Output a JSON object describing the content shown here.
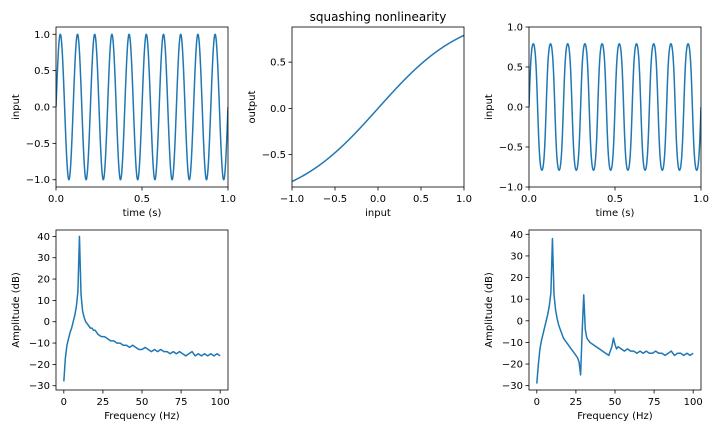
{
  "chart_data": [
    {
      "id": "sine-input",
      "type": "line",
      "title": "",
      "xlabel": "time (s)",
      "ylabel": "input",
      "xlim": [
        0,
        1
      ],
      "ylim": [
        -1.1,
        1.1
      ],
      "xticks": [
        0,
        0.5,
        1
      ],
      "xticklabels": [
        "0.0",
        "0.5",
        "1.0"
      ],
      "yticks": [
        -1,
        -0.5,
        0,
        0.5,
        1
      ],
      "yticklabels": [
        "−1.0",
        "−0.5",
        "0.0",
        "0.5",
        "1.0"
      ],
      "grid": false,
      "color": "#1f77b4",
      "series": [
        {
          "function": "sin",
          "frequency_hz": 10,
          "amplitude": 1,
          "x_range": [
            0,
            1
          ]
        }
      ]
    },
    {
      "id": "squashing-nonlinearity",
      "type": "line",
      "title": "squashing nonlinearity",
      "xlabel": "input",
      "ylabel": "output",
      "xlim": [
        -1,
        1
      ],
      "ylim": [
        -0.85,
        0.88
      ],
      "xticks": [
        -1,
        -0.5,
        0,
        0.5,
        1
      ],
      "xticklabels": [
        "−1.0",
        "−0.5",
        "0.0",
        "0.5",
        "1.0"
      ],
      "yticks": [
        -0.5,
        0,
        0.5
      ],
      "yticklabels": [
        "−0.5",
        "0.0",
        "0.5"
      ],
      "grid": false,
      "color": "#1f77b4",
      "series": [
        {
          "function": "tanh",
          "x_range": [
            -1,
            1
          ],
          "endpoints": [
            [
              -1,
              -0.79
            ],
            [
              1,
              0.79
            ]
          ]
        }
      ]
    },
    {
      "id": "sine-squashed",
      "type": "line",
      "title": "",
      "xlabel": "time (s)",
      "ylabel": "input",
      "xlim": [
        0,
        1
      ],
      "ylim": [
        -1,
        1
      ],
      "xticks": [
        0,
        0.5,
        1
      ],
      "xticklabels": [
        "0.0",
        "0.5",
        "1.0"
      ],
      "yticks": [
        -1,
        -0.5,
        0,
        0.5,
        1
      ],
      "yticklabels": [
        "−1.0",
        "−0.5",
        "0.0",
        "0.5",
        "1.0"
      ],
      "grid": false,
      "color": "#1f77b4",
      "series": [
        {
          "function": "tanh(sin)",
          "frequency_hz": 10,
          "peak": 0.79,
          "x_range": [
            0,
            1
          ]
        }
      ]
    },
    {
      "id": "spectrum-input",
      "type": "line",
      "title": "",
      "xlabel": "Frequency (Hz)",
      "ylabel": "Amplitude (dB)",
      "xlim": [
        -5,
        105
      ],
      "ylim": [
        -32,
        43
      ],
      "xticks": [
        0,
        25,
        50,
        75,
        100
      ],
      "xticklabels": [
        "0",
        "25",
        "50",
        "75",
        "100"
      ],
      "yticks": [
        -30,
        -20,
        -10,
        0,
        10,
        20,
        30,
        40
      ],
      "yticklabels": [
        "−30",
        "−20",
        "−10",
        "0",
        "10",
        "20",
        "30",
        "40"
      ],
      "grid": false,
      "color": "#1f77b4",
      "series": [
        {
          "x": [
            0,
            1,
            2,
            3,
            4,
            5,
            6,
            7,
            8,
            9,
            10,
            11,
            12,
            13,
            14,
            15,
            16,
            17,
            18,
            19,
            20,
            22,
            24,
            26,
            28,
            30,
            32,
            34,
            36,
            38,
            40,
            42,
            44,
            46,
            48,
            50,
            52,
            54,
            56,
            58,
            60,
            62,
            64,
            66,
            68,
            70,
            72,
            74,
            76,
            78,
            80,
            82,
            84,
            86,
            88,
            90,
            92,
            94,
            96,
            98,
            100
          ],
          "y": [
            -28,
            -17,
            -11,
            -8,
            -5,
            -3,
            0,
            3,
            7,
            14,
            40,
            13,
            5,
            2,
            0,
            -1,
            -2,
            -3,
            -3,
            -4,
            -4,
            -6,
            -7,
            -7,
            -8,
            -9,
            -9,
            -10,
            -10,
            -11,
            -11,
            -12,
            -11,
            -12,
            -13,
            -13,
            -12,
            -13,
            -14,
            -13,
            -14,
            -13,
            -14,
            -14,
            -15,
            -14,
            -15,
            -14,
            -15,
            -16,
            -15,
            -14,
            -16,
            -15,
            -16,
            -15,
            -16,
            -15,
            -16,
            -15,
            -16
          ]
        }
      ]
    },
    {
      "id": "spectrum-squashed",
      "type": "line",
      "title": "",
      "xlabel": "Frequency (Hz)",
      "ylabel": "Amplitude (dB)",
      "xlim": [
        -5,
        105
      ],
      "ylim": [
        -32,
        42
      ],
      "xticks": [
        0,
        25,
        50,
        75,
        100
      ],
      "xticklabels": [
        "0",
        "25",
        "50",
        "75",
        "100"
      ],
      "yticks": [
        -30,
        -20,
        -10,
        0,
        10,
        20,
        30,
        40
      ],
      "yticklabels": [
        "−30",
        "−20",
        "−10",
        "0",
        "10",
        "20",
        "30",
        "40"
      ],
      "grid": false,
      "color": "#1f77b4",
      "series": [
        {
          "x": [
            0,
            1,
            2,
            3,
            4,
            5,
            6,
            7,
            8,
            9,
            10,
            11,
            12,
            13,
            14,
            15,
            16,
            17,
            18,
            19,
            20,
            21,
            22,
            23,
            24,
            25,
            26,
            27,
            28,
            29,
            30,
            31,
            32,
            33,
            34,
            36,
            38,
            40,
            42,
            44,
            46,
            48,
            49,
            50,
            51,
            52,
            54,
            56,
            58,
            60,
            62,
            64,
            66,
            68,
            70,
            72,
            74,
            76,
            78,
            80,
            82,
            84,
            86,
            88,
            90,
            92,
            94,
            96,
            98,
            100
          ],
          "y": [
            -29,
            -20,
            -13,
            -9,
            -6,
            -3,
            0,
            3,
            7,
            13,
            38,
            12,
            5,
            1,
            -2,
            -4,
            -6,
            -8,
            -9,
            -10,
            -11,
            -12,
            -13,
            -14,
            -15,
            -16,
            -17,
            -19,
            -25,
            -5,
            12,
            -4,
            -8,
            -9,
            -10,
            -11,
            -12,
            -13,
            -14,
            -15,
            -16,
            -12,
            -8,
            -11,
            -13,
            -12,
            -13,
            -14,
            -13,
            -14,
            -14,
            -15,
            -14,
            -15,
            -14,
            -15,
            -15,
            -14,
            -15,
            -15,
            -16,
            -15,
            -14,
            -16,
            -15,
            -15,
            -16,
            -15,
            -16,
            -15
          ]
        }
      ]
    }
  ]
}
